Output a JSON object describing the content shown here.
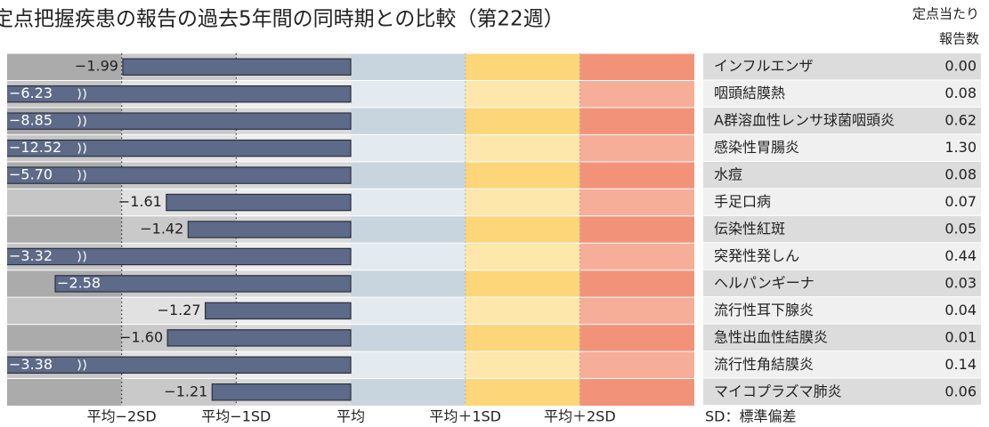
{
  "chart_data": {
    "type": "bar",
    "title": "定点把握疾患の報告の過去5年間の同時期との比較（第22週）",
    "categories": [
      "インフルエンザ",
      "咽頭結膜熱",
      "A群溶血性レンサ球菌咽頭炎",
      "感染性胃腸炎",
      "水痘",
      "手足口病",
      "伝染性紅斑",
      "突発性発しん",
      "ヘルパンギーナ",
      "流行性耳下腺炎",
      "急性出血性結膜炎",
      "流行性角結膜炎",
      "マイコプラズマ肺炎"
    ],
    "values": [
      -1.99,
      -6.23,
      -8.85,
      -12.52,
      -5.7,
      -1.61,
      -1.42,
      -3.32,
      -2.58,
      -1.27,
      -1.6,
      -3.38,
      -1.21
    ],
    "value_labels": [
      "−1.99",
      "−6.23",
      "−8.85",
      "−12.52",
      "−5.70",
      "−1.61",
      "−1.42",
      "−3.32",
      "−2.58",
      "−1.27",
      "−1.60",
      "−3.38",
      "−1.21"
    ],
    "color": "#5d6a88",
    "xlim": [
      -3,
      3
    ],
    "xticks": [
      {
        "value": -2,
        "label": "平均−2SD"
      },
      {
        "value": -1,
        "label": "平均−1SD"
      },
      {
        "value": 0,
        "label": "平均"
      },
      {
        "value": 1,
        "label": "平均＋1SD"
      },
      {
        "value": 2,
        "label": "平均＋2SD"
      }
    ],
    "zone_colors": [
      [
        "#ababab",
        "#c6c6c6"
      ],
      [
        "#c9c9c9",
        "#e1e1e1"
      ],
      [
        "#d9d9d9",
        "#eeeeee"
      ],
      [
        "#c8d5de",
        "#e3ebf0"
      ],
      [
        "#fdd67a",
        "#fee7aa"
      ],
      [
        "#f29379",
        "#f6ae99"
      ]
    ],
    "note": "SD：標準偏差",
    "table": {
      "header": [
        "定点当たり",
        "報告数"
      ],
      "values": [
        0,
        0.08,
        0.62,
        1.3,
        0.08,
        0.07,
        0.05,
        0.44,
        0.03,
        0.04,
        0.01,
        0.14,
        0.06
      ],
      "value_labels": [
        "0.00",
        "0.08",
        "0.62",
        "1.30",
        "0.08",
        "0.07",
        "0.05",
        "0.44",
        "0.03",
        "0.04",
        "0.01",
        "0.14",
        "0.06"
      ]
    }
  }
}
